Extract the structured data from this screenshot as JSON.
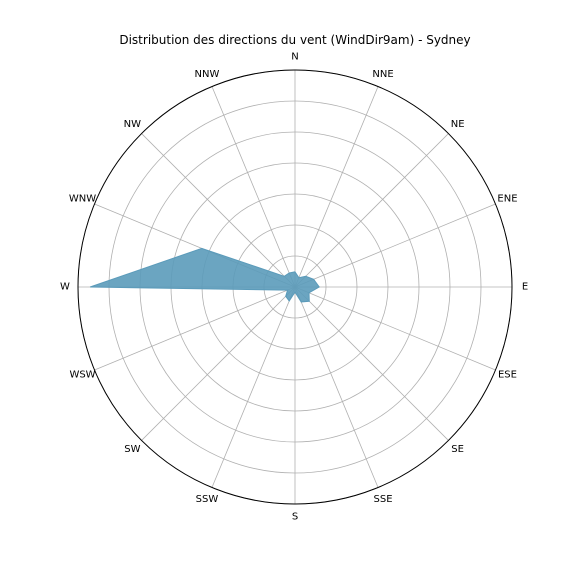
{
  "chart_data": {
    "type": "radar",
    "title": "Distribution des directions du vent (WindDir9am) - Sydney",
    "directions": [
      "N",
      "NNE",
      "NE",
      "ENE",
      "E",
      "ESE",
      "SE",
      "SSE",
      "S",
      "SSW",
      "SW",
      "WSW",
      "W",
      "WNW",
      "NW",
      "NNW"
    ],
    "values": [
      15,
      10,
      15,
      20,
      24,
      15,
      20,
      16,
      5,
      15,
      13,
      8,
      203,
      100,
      15,
      15
    ],
    "rmax": 215,
    "ring_count": 7,
    "grid": true,
    "radial_tick_labels_shown": false,
    "fill_color": "#5b9bba",
    "fill_opacity": 0.9,
    "orientation": "N at top, clockwise"
  }
}
